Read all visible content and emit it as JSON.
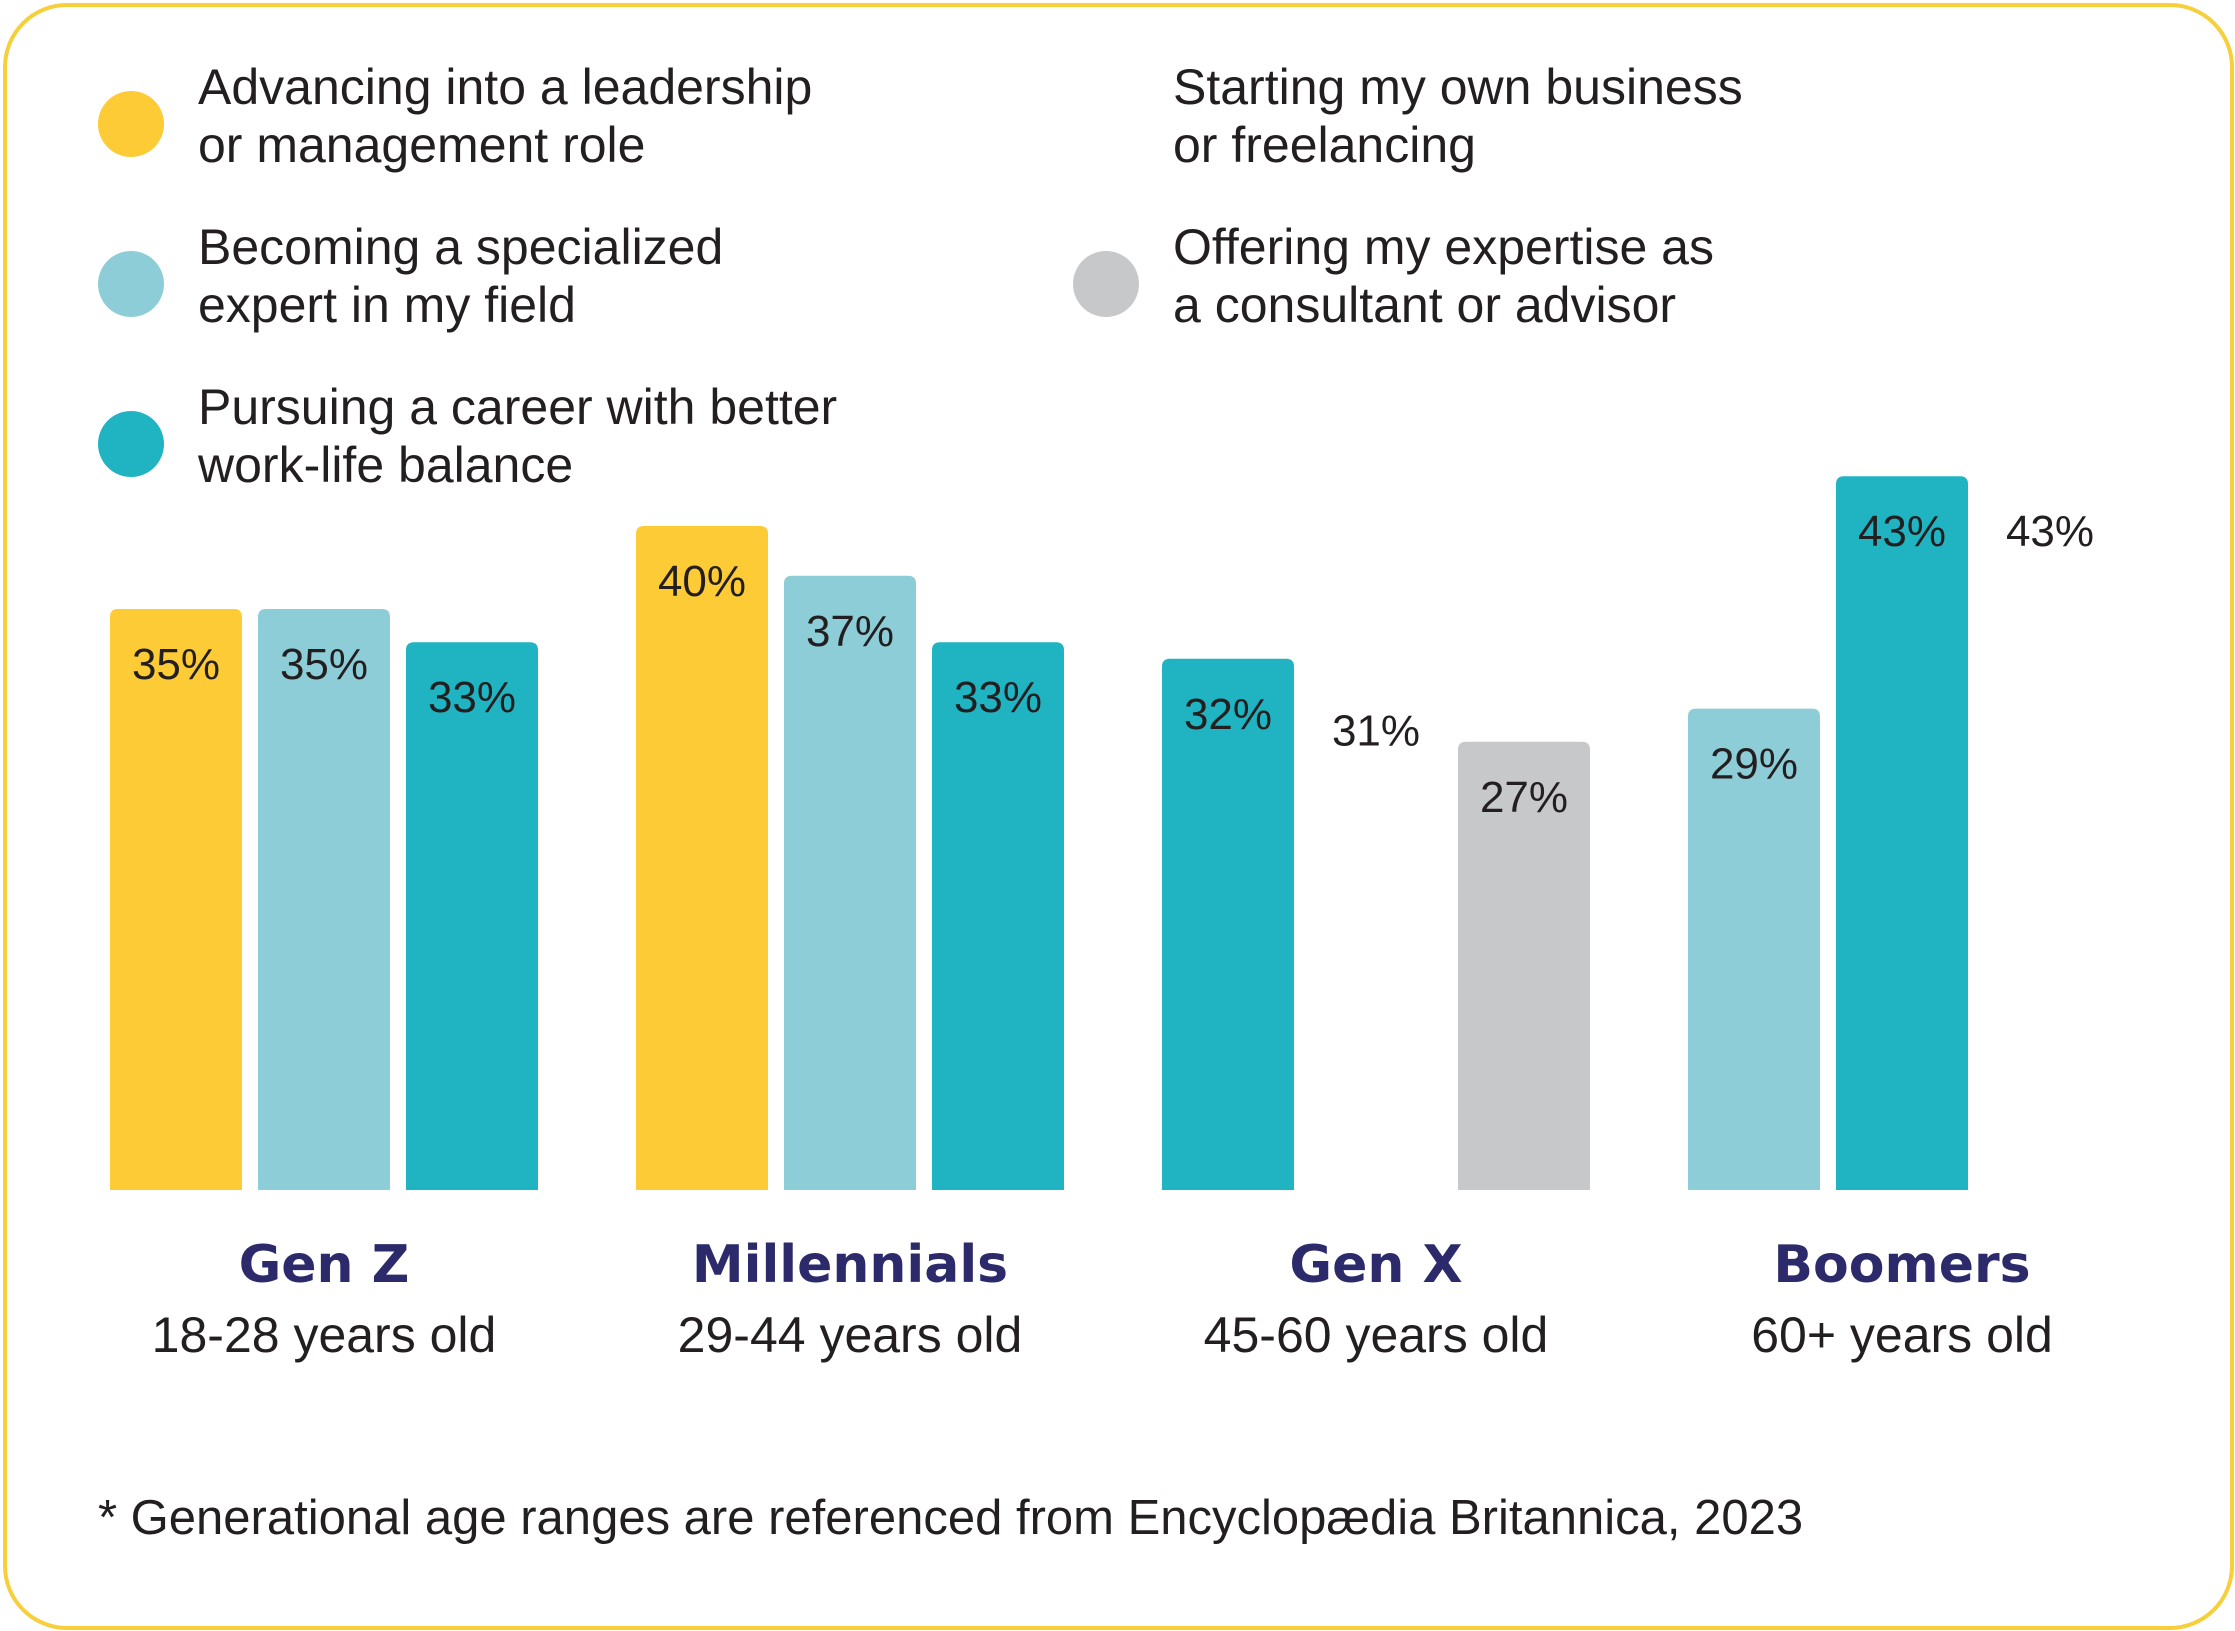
{
  "colors": {
    "frame": "#F6CF3A",
    "text": "#231F20",
    "category_text": "#2C2A6B"
  },
  "legend": [
    {
      "label": "Advancing into a leadership\nor management role",
      "color": "#FDCB35",
      "show_dot": true
    },
    {
      "label": "Becoming a specialized\nexpert in my field",
      "color": "#8DCDD7",
      "show_dot": true
    },
    {
      "label": "Pursuing a career with better\n work-life balance",
      "color": "#20B4C2",
      "show_dot": true
    },
    {
      "label": "Starting my own business\nor freelancing",
      "color": "#FFFFFF",
      "show_dot": false
    },
    {
      "label": "Offering my expertise as\na consultant or advisor",
      "color": "#C7C8CA",
      "show_dot": true
    }
  ],
  "chart_data": {
    "type": "bar",
    "ylim": [
      0,
      46
    ],
    "categories": [
      {
        "name": "Gen Z",
        "sub": "18-28 years old"
      },
      {
        "name": "Millennials",
        "sub": "29-44 years old"
      },
      {
        "name": "Gen X",
        "sub": "45-60 years old"
      },
      {
        "name": "Boomers",
        "sub": "60+ years old"
      }
    ],
    "series": [
      {
        "name": "Advancing into a leadership or management role",
        "color": "#FDCB35",
        "values": [
          35,
          40,
          null,
          null
        ]
      },
      {
        "name": "Becoming a specialized expert in my field",
        "color": "#8DCDD7",
        "values": [
          35,
          37,
          null,
          29
        ]
      },
      {
        "name": "Pursuing a career with better work-life balance",
        "color": "#20B4C2",
        "values": [
          33,
          33,
          32,
          43
        ]
      },
      {
        "name": "Starting my own business or freelancing",
        "color": "#FFFFFF",
        "values": [
          null,
          null,
          31,
          43
        ]
      },
      {
        "name": "Offering my expertise as a consultant or advisor",
        "color": "#C7C8CA",
        "values": [
          null,
          null,
          27,
          null
        ]
      }
    ],
    "value_labels": [
      [
        "35%",
        "35%",
        "33%"
      ],
      [
        "40%",
        "37%",
        "33%"
      ],
      [
        "32%",
        "31%",
        "27%"
      ],
      [
        "29%",
        "43%",
        "43%"
      ]
    ]
  },
  "footnote": "* Generational age ranges are referenced from Encyclopædia Britannica, 2023"
}
